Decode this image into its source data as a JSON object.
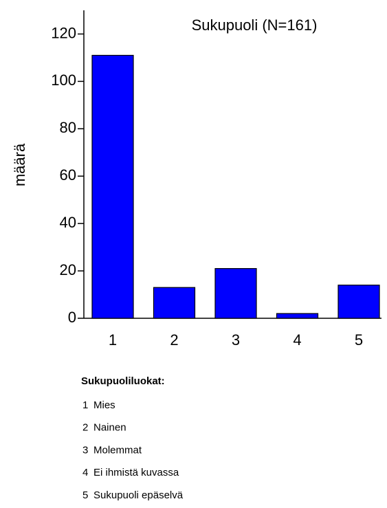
{
  "chart_data": {
    "type": "bar",
    "title": "Sukupuoli (N=161)",
    "y_label": "määrä",
    "categories": [
      "1",
      "2",
      "3",
      "4",
      "5"
    ],
    "values": [
      111,
      13,
      21,
      2,
      14
    ],
    "color": "#0000ff",
    "ylim": [
      0,
      130
    ],
    "yticks": [
      0,
      20,
      40,
      60,
      80,
      100,
      120
    ],
    "grid": false,
    "legend": {
      "title": "Sukupuoliluokat:",
      "items": [
        "Mies",
        "Nainen",
        "Molemmat",
        "Ei ihmistä kuvassa",
        "Sukupuoli epäselvä"
      ]
    }
  }
}
